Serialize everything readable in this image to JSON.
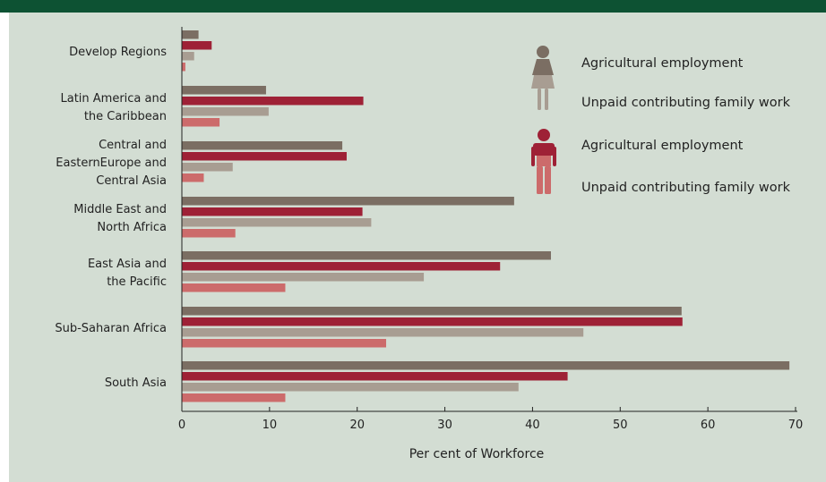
{
  "chart_data": {
    "type": "bar",
    "orientation": "horizontal",
    "title": "",
    "xlabel": "Per cent of Workforce",
    "ylabel": "",
    "xlim": [
      0,
      70
    ],
    "x_ticks": [
      0,
      10,
      20,
      30,
      40,
      50,
      60,
      70
    ],
    "grid": false,
    "legend_position": "top-right",
    "categories": [
      [
        "Develop Regions"
      ],
      [
        "Latin America and",
        "the Caribbean"
      ],
      [
        "Central and",
        "EasternEurope and",
        "Central Asia"
      ],
      [
        "Middle East and",
        "North Africa"
      ],
      [
        "East Asia and",
        "the Pacific"
      ],
      [
        "Sub-Saharan Africa"
      ],
      [
        "South Asia"
      ]
    ],
    "series": [
      {
        "group": "female",
        "name": "Agricultural employment",
        "color": "#7b6e63",
        "values": [
          1.9,
          9.6,
          18.3,
          37.9,
          42.1,
          57.0,
          69.3
        ]
      },
      {
        "group": "male",
        "name": "Agricultural employment",
        "color": "#9e2136",
        "values": [
          3.4,
          20.7,
          18.8,
          20.6,
          36.3,
          57.1,
          44.0
        ]
      },
      {
        "group": "female",
        "name": "Unpaid contributing family work",
        "color": "#a89d92",
        "values": [
          1.4,
          9.9,
          5.8,
          21.6,
          27.6,
          45.8,
          38.4
        ]
      },
      {
        "group": "male",
        "name": "Unpaid contributing family work",
        "color": "#cc6b6b",
        "values": [
          0.4,
          4.3,
          2.5,
          6.1,
          11.8,
          23.3,
          11.8
        ]
      }
    ],
    "legend": [
      {
        "icon": "woman-icon",
        "color": "#7b6e63",
        "color_lower": "#a89d92",
        "items": [
          "Agricultural employment",
          "Unpaid contributing family work"
        ]
      },
      {
        "icon": "man-icon",
        "color": "#9e2136",
        "color_lower": "#cc6b6b",
        "items": [
          "Agricultural employment",
          "Unpaid contributing family work"
        ]
      }
    ]
  },
  "colors": {
    "header_bar": "#0d5233",
    "panel_background": "#d3ddd3",
    "axis": "#222222"
  }
}
